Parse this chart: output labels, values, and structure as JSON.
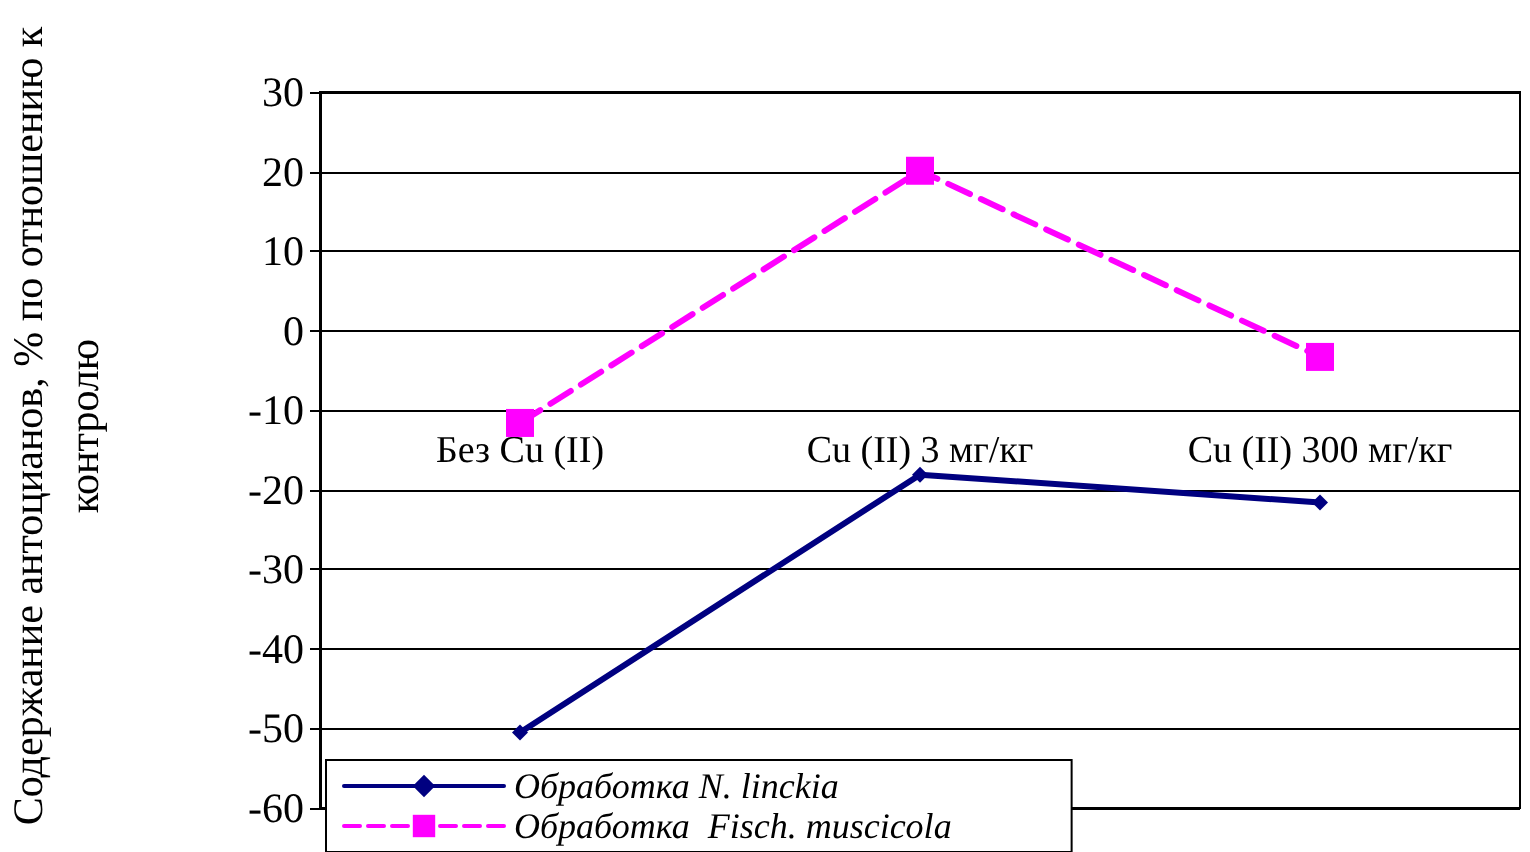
{
  "chart_data": {
    "type": "line",
    "ylabel": "Содержание антоцианов, % по отношению к контролю",
    "categories": [
      "Без Cu (II)",
      "Cu (II) 3 мг/кг",
      "Cu (II) 300 мг/кг"
    ],
    "series": [
      {
        "name": "Обработка N. linckia",
        "color": "#000080",
        "values": [
          -50.5,
          -18.1,
          -21.6
        ],
        "marker": "diamond",
        "line_style": "solid"
      },
      {
        "name": "Обработка  Fisch. muscicola",
        "color": "#ff00ff",
        "values": [
          -11.6,
          20.1,
          -3.3
        ],
        "marker": "square",
        "line_style": "dashed"
      }
    ],
    "ylim": [
      -60,
      30
    ],
    "yticks": [
      -60,
      -50,
      -40,
      -30,
      -20,
      -10,
      0,
      10,
      20,
      30
    ],
    "grid": "y",
    "legend": "bottom left"
  }
}
